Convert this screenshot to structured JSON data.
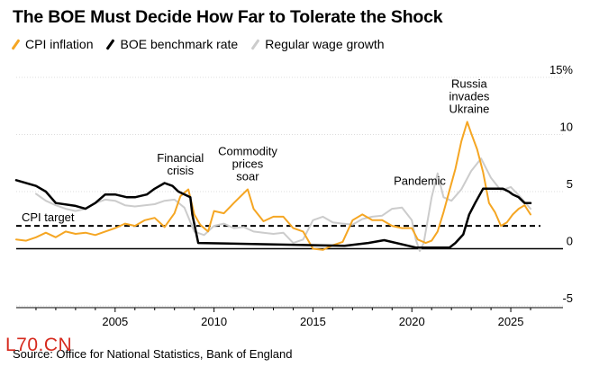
{
  "page": {
    "title": "The BOE Must Decide How Far to Tolerate the Shock",
    "source": "Source: Office for National Statistics, Bank of England",
    "watermark": "L70.CN"
  },
  "legend": [
    {
      "label": "CPI inflation",
      "color": "#f5a623"
    },
    {
      "label": "BOE benchmark rate",
      "color": "#000000"
    },
    {
      "label": "Regular wage growth",
      "color": "#cccccc"
    }
  ],
  "chart_data": {
    "type": "line",
    "xlim": [
      2000,
      2026.5
    ],
    "ylim": [
      -5,
      15
    ],
    "x_ticks": [
      2005,
      2010,
      2015,
      2020,
      2025
    ],
    "y_ticks": [
      -5,
      0,
      5,
      10,
      15
    ],
    "y_tick_labels": [
      "-5",
      "0",
      "5",
      "10",
      "15%"
    ],
    "grid": "horizontal",
    "reference_line": {
      "label": "CPI target",
      "value": 2
    },
    "annotations": [
      {
        "lines": [
          "Financial",
          "crisis"
        ],
        "x": 2008.3,
        "y": 6.5
      },
      {
        "lines": [
          "Commodity",
          "prices",
          "soar"
        ],
        "x": 2011.7,
        "y": 6.0
      },
      {
        "lines": [
          "Pandemic"
        ],
        "x": 2020.4,
        "y": 5.6
      },
      {
        "lines": [
          "Russia",
          "invades",
          "Ukraine"
        ],
        "x": 2022.9,
        "y": 11.9
      }
    ],
    "series": [
      {
        "name": "CPI inflation",
        "color": "#f5a623",
        "x": [
          2000,
          2000.5,
          2001,
          2001.5,
          2002,
          2002.5,
          2003,
          2003.5,
          2004,
          2004.5,
          2005,
          2005.5,
          2006,
          2006.5,
          2007,
          2007.5,
          2008,
          2008.3,
          2008.7,
          2009,
          2009.3,
          2009.7,
          2010,
          2010.5,
          2011,
          2011.7,
          2012,
          2012.5,
          2013,
          2013.5,
          2014,
          2014.5,
          2015,
          2015.5,
          2016,
          2016.5,
          2017,
          2017.5,
          2018,
          2018.5,
          2019,
          2019.5,
          2020,
          2020.3,
          2020.7,
          2021,
          2021.3,
          2021.6,
          2021.9,
          2022.2,
          2022.5,
          2022.8,
          2023,
          2023.3,
          2023.6,
          2023.9,
          2024.2,
          2024.5,
          2024.8,
          2025.1,
          2025.4,
          2025.7,
          2026
        ],
        "y": [
          0.8,
          0.7,
          1,
          1.4,
          1,
          1.5,
          1.3,
          1.4,
          1.2,
          1.5,
          1.8,
          2.2,
          2,
          2.5,
          2.7,
          1.9,
          3.1,
          4.6,
          5.2,
          3.0,
          2.1,
          1.5,
          3.3,
          3.1,
          4.0,
          5.2,
          3.5,
          2.4,
          2.8,
          2.8,
          1.8,
          1.5,
          0.0,
          -0.1,
          0.3,
          0.6,
          2.5,
          3.0,
          2.5,
          2.5,
          2.0,
          1.8,
          1.8,
          0.8,
          0.5,
          0.7,
          1.5,
          3.2,
          5.1,
          7.0,
          9.4,
          11.1,
          10.1,
          8.7,
          6.7,
          4.0,
          3.2,
          2.0,
          2.3,
          3.0,
          3.5,
          3.8,
          3.0
        ]
      },
      {
        "name": "BOE benchmark rate",
        "color": "#000000",
        "x": [
          2000,
          2001,
          2001.5,
          2002,
          2003,
          2003.5,
          2004,
          2004.5,
          2005,
          2005.6,
          2006,
          2006.6,
          2007,
          2007.5,
          2007.9,
          2008.2,
          2008.8,
          2008.9,
          2009.2,
          2016.6,
          2017.8,
          2018.6,
          2020.2,
          2021.9,
          2022.2,
          2022.6,
          2022.9,
          2023.2,
          2023.6,
          2024.6,
          2024.9,
          2025.1,
          2025.4,
          2025.7,
          2026
        ],
        "y": [
          6,
          5.5,
          5,
          4,
          3.75,
          3.5,
          4,
          4.75,
          4.75,
          4.5,
          4.5,
          4.75,
          5.25,
          5.75,
          5.5,
          5,
          4.5,
          3,
          0.5,
          0.25,
          0.5,
          0.75,
          0.1,
          0.1,
          0.5,
          1.25,
          3,
          4,
          5.25,
          5.25,
          5,
          4.75,
          4.5,
          4,
          4
        ]
      },
      {
        "name": "Regular wage growth",
        "color": "#cccccc",
        "x": [
          2001,
          2001.5,
          2002,
          2002.5,
          2003,
          2003.5,
          2004,
          2004.5,
          2005,
          2005.5,
          2006,
          2006.5,
          2007,
          2007.5,
          2008,
          2008.5,
          2009,
          2009.5,
          2010,
          2010.5,
          2011,
          2011.5,
          2012,
          2012.5,
          2013,
          2013.5,
          2014,
          2014.5,
          2015,
          2015.5,
          2016,
          2016.5,
          2017,
          2017.5,
          2018,
          2018.5,
          2019,
          2019.5,
          2020,
          2020.2,
          2020.4,
          2020.6,
          2020.8,
          2021,
          2021.3,
          2021.6,
          2022,
          2022.5,
          2023,
          2023.5,
          2024,
          2024.5,
          2025,
          2025.5,
          2026
        ],
        "y": [
          4.8,
          4.2,
          3.8,
          3.5,
          3.3,
          3.5,
          4.0,
          4.3,
          4.2,
          3.8,
          3.7,
          3.8,
          3.9,
          4.2,
          4.3,
          3.6,
          1.5,
          1.2,
          2.0,
          2.2,
          1.8,
          1.9,
          1.5,
          1.4,
          1.3,
          1.4,
          0.5,
          0.8,
          2.5,
          2.8,
          2.3,
          2.2,
          2.1,
          2.6,
          2.8,
          2.9,
          3.5,
          3.6,
          2.5,
          0.8,
          -0.2,
          0.5,
          2.5,
          4.5,
          6.6,
          4.5,
          4.2,
          5.2,
          6.8,
          7.9,
          6.2,
          5.1,
          5.4,
          4.5,
          3.5
        ]
      }
    ]
  }
}
